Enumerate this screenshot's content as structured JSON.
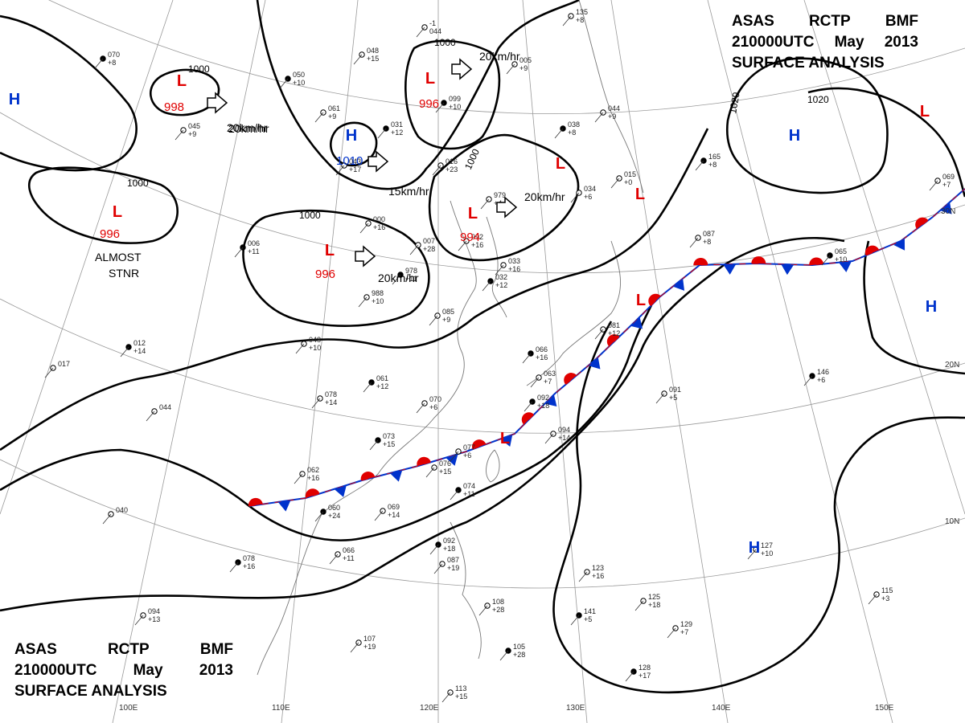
{
  "header": {
    "line1": [
      "ASAS",
      "RCTP",
      "BMF"
    ],
    "line2": [
      "210000UTC",
      "May",
      "2013"
    ],
    "line3": "SURFACE ANALYSIS"
  },
  "pressure_centers": [
    {
      "type": "L",
      "value": "998",
      "color": "#e00000"
    },
    {
      "type": "L",
      "value": "996",
      "color": "#e00000"
    },
    {
      "type": "L",
      "value": "996",
      "color": "#e00000"
    },
    {
      "type": "L",
      "value": "994",
      "color": "#e00000"
    },
    {
      "type": "L",
      "value": "996",
      "color": "#e00000"
    },
    {
      "type": "L",
      "value": "",
      "color": "#e00000"
    },
    {
      "type": "L",
      "value": "",
      "color": "#e00000"
    },
    {
      "type": "L",
      "value": "",
      "color": "#e00000"
    },
    {
      "type": "L",
      "value": "",
      "color": "#e00000"
    },
    {
      "type": "L",
      "value": "",
      "color": "#e00000"
    },
    {
      "type": "H",
      "value": "1010",
      "color": "#0033cc"
    },
    {
      "type": "H",
      "value": "",
      "color": "#0033cc"
    },
    {
      "type": "H",
      "value": "",
      "color": "#0033cc"
    },
    {
      "type": "H",
      "value": "",
      "color": "#0033cc"
    },
    {
      "type": "H",
      "value": "",
      "color": "#0033cc"
    }
  ],
  "isobar_labels": [
    "1000",
    "1000",
    "1000",
    "1000",
    "1000",
    "1020",
    "1020"
  ],
  "motion_labels": [
    "20km/hr",
    "20km/hr",
    "15km/hr",
    "20km/hr",
    "20km/hr",
    "20km/hr"
  ],
  "annotations": [
    "ALMOST",
    "STNR"
  ],
  "lat_labels": [
    "30N",
    "20N",
    "10N"
  ],
  "lon_labels": [
    "100E",
    "110E",
    "120E",
    "130E",
    "140E",
    "150E"
  ],
  "front": {
    "type": "stationary",
    "warm_color": "#e00000",
    "cold_color": "#0033cc"
  },
  "stations": [
    [
      "070",
      "+8"
    ],
    [
      "048",
      "+15"
    ],
    [
      "-1",
      "044"
    ],
    [
      "050",
      "+10"
    ],
    [
      "061",
      "+9"
    ],
    [
      "045",
      "+9"
    ],
    [
      "031",
      "+12"
    ],
    [
      "043",
      "+17"
    ],
    [
      "016",
      "+23"
    ],
    [
      "099",
      "+10"
    ],
    [
      "979",
      "+4"
    ],
    [
      "000",
      "+16"
    ],
    [
      "006",
      "+11"
    ],
    [
      "007",
      "+28"
    ],
    [
      "992",
      "+16"
    ],
    [
      "978",
      "+11"
    ],
    [
      "988",
      "+10"
    ],
    [
      "033",
      "+16"
    ],
    [
      "032",
      "+12"
    ],
    [
      "048",
      "+10"
    ],
    [
      "085",
      "+9"
    ],
    [
      "012",
      "+14"
    ],
    [
      "017",
      ""
    ],
    [
      "044",
      ""
    ],
    [
      "061",
      "+12"
    ],
    [
      "078",
      "+14"
    ],
    [
      "070",
      "+6"
    ],
    [
      "073",
      "+15"
    ],
    [
      "077",
      "+6"
    ],
    [
      "076",
      "+15"
    ],
    [
      "074",
      "+11"
    ],
    [
      "069",
      "+14"
    ],
    [
      "062",
      "+16"
    ],
    [
      "060",
      "+24"
    ],
    [
      "040",
      ""
    ],
    [
      "066",
      "+11"
    ],
    [
      "078",
      "+16"
    ],
    [
      "094",
      "+13"
    ],
    [
      "107",
      "+19"
    ],
    [
      "092",
      "+18"
    ],
    [
      "087",
      "+19"
    ],
    [
      "108",
      "+28"
    ],
    [
      "105",
      "+28"
    ],
    [
      "113",
      "+15"
    ],
    [
      "123",
      "+16"
    ],
    [
      "141",
      "+5"
    ],
    [
      "125",
      "+18"
    ],
    [
      "129",
      "+7"
    ],
    [
      "128",
      "+17"
    ],
    [
      "127",
      "+10"
    ],
    [
      "115",
      "+3"
    ],
    [
      "092",
      "+18"
    ],
    [
      "094",
      "+14"
    ],
    [
      "081",
      "+12"
    ],
    [
      "066",
      "+16"
    ],
    [
      "063",
      "+7"
    ],
    [
      "091",
      "+5"
    ],
    [
      "146",
      "+6"
    ],
    [
      "069",
      "+7"
    ],
    [
      "087",
      "+8"
    ],
    [
      "065",
      "+10"
    ],
    [
      "015",
      "+0"
    ],
    [
      "034",
      "+6"
    ],
    [
      "038",
      "+8"
    ],
    [
      "044",
      "+9"
    ],
    [
      "135",
      "+8"
    ],
    [
      "165",
      "+8"
    ],
    [
      "005",
      "+9"
    ]
  ]
}
